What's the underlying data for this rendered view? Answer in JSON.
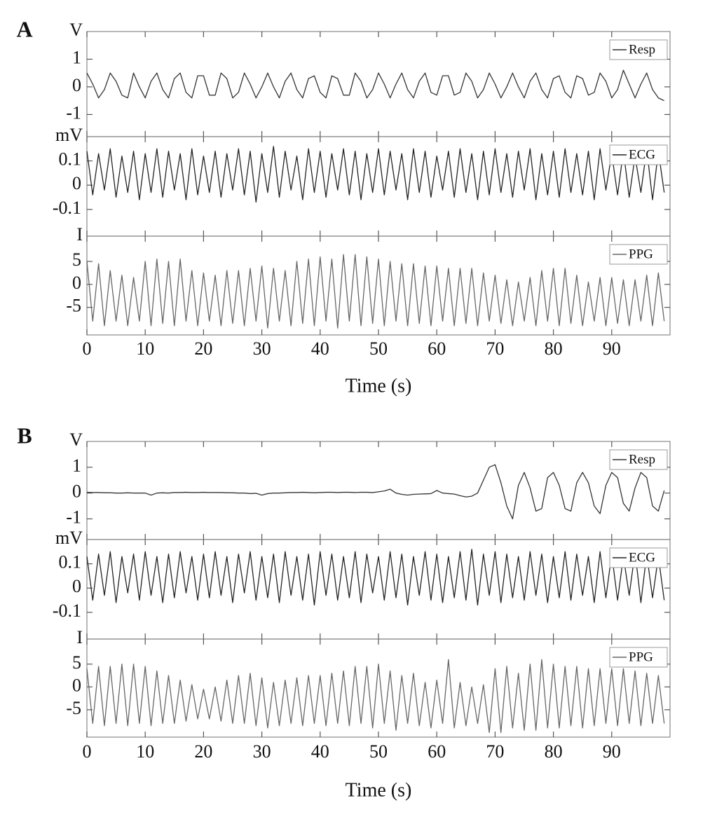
{
  "chart_data": [
    {
      "type": "line",
      "panel_label": "A",
      "xlabel": "Time (s)",
      "xlim": [
        0,
        100
      ],
      "xticks": [
        0,
        10,
        20,
        30,
        40,
        50,
        60,
        70,
        80,
        90
      ],
      "x": [
        0,
        1,
        2,
        3,
        4,
        5,
        6,
        7,
        8,
        9,
        10,
        11,
        12,
        13,
        14,
        15,
        16,
        17,
        18,
        19,
        20,
        21,
        22,
        23,
        24,
        25,
        26,
        27,
        28,
        29,
        30,
        31,
        32,
        33,
        34,
        35,
        36,
        37,
        38,
        39,
        40,
        41,
        42,
        43,
        44,
        45,
        46,
        47,
        48,
        49,
        50,
        51,
        52,
        53,
        54,
        55,
        56,
        57,
        58,
        59,
        60,
        61,
        62,
        63,
        64,
        65,
        66,
        67,
        68,
        69,
        70,
        71,
        72,
        73,
        74,
        75,
        76,
        77,
        78,
        79,
        80,
        81,
        82,
        83,
        84,
        85,
        86,
        87,
        88,
        89,
        90,
        91,
        92,
        93,
        94,
        95,
        96,
        97,
        98,
        99
      ],
      "rows": [
        {
          "unit": "V",
          "ylim": [
            -1.8,
            2.0
          ],
          "yticks": [
            -1,
            0,
            1
          ],
          "series": [
            {
              "name": "Resp",
              "color": "#333333",
              "values": [
                0.5,
                0.1,
                -0.4,
                -0.1,
                0.5,
                0.2,
                -0.3,
                -0.4,
                0.5,
                0.0,
                -0.4,
                0.2,
                0.5,
                -0.1,
                -0.4,
                0.3,
                0.5,
                -0.2,
                -0.4,
                0.4,
                0.4,
                -0.3,
                -0.3,
                0.5,
                0.3,
                -0.4,
                -0.2,
                0.5,
                0.1,
                -0.4,
                0.0,
                0.5,
                0.0,
                -0.4,
                0.2,
                0.5,
                -0.1,
                -0.4,
                0.3,
                0.4,
                -0.2,
                -0.4,
                0.4,
                0.3,
                -0.3,
                -0.3,
                0.5,
                0.2,
                -0.4,
                -0.1,
                0.5,
                0.1,
                -0.4,
                0.1,
                0.5,
                -0.1,
                -0.4,
                0.2,
                0.5,
                -0.2,
                -0.3,
                0.4,
                0.4,
                -0.3,
                -0.2,
                0.5,
                0.2,
                -0.4,
                -0.1,
                0.5,
                0.1,
                -0.4,
                0.0,
                0.5,
                0.0,
                -0.4,
                0.2,
                0.5,
                -0.1,
                -0.4,
                0.3,
                0.4,
                -0.2,
                -0.4,
                0.4,
                0.3,
                -0.3,
                -0.2,
                0.5,
                0.2,
                -0.4,
                -0.1,
                0.6,
                0.1,
                -0.4,
                0.1,
                0.5,
                -0.1,
                -0.4,
                -0.5
              ]
            }
          ]
        },
        {
          "unit": "mV",
          "ylim": [
            -0.21,
            0.2
          ],
          "yticks": [
            -0.1,
            0,
            0.1
          ],
          "series": [
            {
              "name": "ECG",
              "color": "#222222",
              "values": [
                0.14,
                -0.04,
                0.13,
                -0.02,
                0.15,
                -0.05,
                0.12,
                -0.03,
                0.14,
                -0.06,
                0.13,
                -0.03,
                0.15,
                -0.05,
                0.14,
                -0.02,
                0.13,
                -0.06,
                0.15,
                -0.04,
                0.12,
                -0.03,
                0.14,
                -0.05,
                0.13,
                -0.02,
                0.15,
                -0.04,
                0.14,
                -0.07,
                0.13,
                -0.03,
                0.16,
                -0.05,
                0.14,
                -0.02,
                0.12,
                -0.06,
                0.15,
                -0.03,
                0.14,
                -0.05,
                0.13,
                -0.02,
                0.15,
                -0.04,
                0.14,
                -0.06,
                0.13,
                -0.03,
                0.15,
                -0.04,
                0.14,
                -0.02,
                0.13,
                -0.06,
                0.15,
                -0.03,
                0.14,
                -0.05,
                0.12,
                -0.02,
                0.14,
                -0.05,
                0.15,
                -0.03,
                0.13,
                -0.06,
                0.14,
                -0.04,
                0.15,
                -0.03,
                0.13,
                -0.05,
                0.14,
                -0.02,
                0.15,
                -0.06,
                0.13,
                -0.04,
                0.14,
                -0.05,
                0.15,
                -0.03,
                0.13,
                -0.04,
                0.14,
                -0.06,
                0.15,
                -0.02,
                0.13,
                -0.04,
                0.14,
                -0.05,
                0.12,
                -0.03,
                0.15,
                -0.06,
                0.14,
                -0.03
              ]
            }
          ]
        },
        {
          "unit": "I",
          "ylim": [
            -11,
            10.5
          ],
          "yticks": [
            -5,
            0,
            5
          ],
          "series": [
            {
              "name": "PPG",
              "color": "#666666",
              "values": [
                5,
                -8,
                4.5,
                -9,
                3,
                -8,
                2,
                -9,
                1.5,
                -8,
                5,
                -9,
                5.5,
                -8.5,
                5,
                -9,
                5.5,
                -8,
                3,
                -9,
                2.5,
                -8,
                2,
                -9,
                3,
                -8.5,
                3,
                -9,
                3.5,
                -8,
                4,
                -9.5,
                3.5,
                -8,
                3,
                -9,
                5,
                -8.5,
                5.5,
                -9,
                6,
                -8,
                5.5,
                -9.5,
                6.5,
                -8,
                6.5,
                -9,
                6,
                -8.5,
                5.5,
                -9,
                5,
                -8,
                4.5,
                -9,
                4.5,
                -8.5,
                4,
                -9,
                4,
                -8,
                3.5,
                -9,
                3.5,
                -8.5,
                3.5,
                -9,
                2.5,
                -8,
                2,
                -8.5,
                1,
                -9,
                0.5,
                -8,
                1.5,
                -9,
                3,
                -8,
                3.5,
                -9,
                3.5,
                -8.5,
                2,
                -9,
                0.5,
                -8,
                1.5,
                -9,
                1.5,
                -8.5,
                1,
                -9,
                1,
                -8,
                2,
                -9,
                2.5,
                -8
              ]
            }
          ]
        }
      ]
    },
    {
      "type": "line",
      "panel_label": "B",
      "xlabel": "Time (s)",
      "xlim": [
        0,
        100
      ],
      "xticks": [
        0,
        10,
        20,
        30,
        40,
        50,
        60,
        70,
        80,
        90
      ],
      "x": [
        0,
        1,
        2,
        3,
        4,
        5,
        6,
        7,
        8,
        9,
        10,
        11,
        12,
        13,
        14,
        15,
        16,
        17,
        18,
        19,
        20,
        21,
        22,
        23,
        24,
        25,
        26,
        27,
        28,
        29,
        30,
        31,
        32,
        33,
        34,
        35,
        36,
        37,
        38,
        39,
        40,
        41,
        42,
        43,
        44,
        45,
        46,
        47,
        48,
        49,
        50,
        51,
        52,
        53,
        54,
        55,
        56,
        57,
        58,
        59,
        60,
        61,
        62,
        63,
        64,
        65,
        66,
        67,
        68,
        69,
        70,
        71,
        72,
        73,
        74,
        75,
        76,
        77,
        78,
        79,
        80,
        81,
        82,
        83,
        84,
        85,
        86,
        87,
        88,
        89,
        90,
        91,
        92,
        93,
        94,
        95,
        96,
        97,
        98,
        99
      ],
      "rows": [
        {
          "unit": "V",
          "ylim": [
            -1.8,
            2.0
          ],
          "yticks": [
            -1,
            0,
            1
          ],
          "series": [
            {
              "name": "Resp",
              "color": "#333333",
              "values": [
                0.03,
                0.02,
                0.02,
                0.01,
                0.01,
                0.0,
                0.0,
                0.01,
                0.0,
                0.0,
                0.0,
                -0.08,
                0.0,
                0.01,
                0.0,
                0.02,
                0.02,
                0.03,
                0.02,
                0.02,
                0.03,
                0.02,
                0.02,
                0.02,
                0.01,
                0.01,
                0.0,
                0.0,
                -0.02,
                -0.01,
                -0.08,
                -0.02,
                0.0,
                0.0,
                0.01,
                0.02,
                0.02,
                0.03,
                0.02,
                0.01,
                0.02,
                0.03,
                0.03,
                0.02,
                0.03,
                0.03,
                0.02,
                0.03,
                0.03,
                0.02,
                0.05,
                0.08,
                0.15,
                0.0,
                -0.05,
                -0.08,
                -0.05,
                -0.04,
                -0.03,
                -0.02,
                0.1,
                0.0,
                -0.02,
                -0.04,
                -0.1,
                -0.15,
                -0.12,
                0.0,
                0.5,
                1.0,
                1.1,
                0.4,
                -0.5,
                -1.0,
                0.3,
                0.8,
                0.2,
                -0.7,
                -0.6,
                0.6,
                0.8,
                0.3,
                -0.6,
                -0.7,
                0.4,
                0.8,
                0.4,
                -0.5,
                -0.8,
                0.3,
                0.8,
                0.6,
                -0.4,
                -0.7,
                0.2,
                0.8,
                0.6,
                -0.5,
                -0.7,
                0.1
              ]
            }
          ]
        },
        {
          "unit": "mV",
          "ylim": [
            -0.21,
            0.2
          ],
          "yticks": [
            -0.1,
            0,
            0.1
          ],
          "series": [
            {
              "name": "ECG",
              "color": "#222222",
              "values": [
                0.13,
                -0.05,
                0.14,
                -0.03,
                0.15,
                -0.06,
                0.13,
                -0.02,
                0.14,
                -0.05,
                0.15,
                -0.03,
                0.13,
                -0.06,
                0.14,
                -0.04,
                0.15,
                -0.02,
                0.13,
                -0.05,
                0.14,
                -0.04,
                0.15,
                -0.03,
                0.13,
                -0.06,
                0.14,
                -0.02,
                0.15,
                -0.05,
                0.13,
                -0.04,
                0.14,
                -0.06,
                0.15,
                -0.03,
                0.13,
                -0.05,
                0.14,
                -0.07,
                0.15,
                -0.03,
                0.14,
                -0.05,
                0.13,
                -0.04,
                0.15,
                -0.06,
                0.14,
                -0.02,
                0.13,
                -0.05,
                0.15,
                -0.04,
                0.14,
                -0.07,
                0.13,
                -0.03,
                0.15,
                -0.05,
                0.14,
                -0.06,
                0.13,
                -0.04,
                0.15,
                -0.05,
                0.16,
                -0.07,
                0.14,
                -0.03,
                0.15,
                -0.06,
                0.14,
                -0.04,
                0.13,
                -0.05,
                0.15,
                -0.03,
                0.14,
                -0.06,
                0.13,
                -0.04,
                0.15,
                -0.05,
                0.14,
                -0.03,
                0.13,
                -0.06,
                0.15,
                -0.04,
                0.14,
                -0.05,
                0.13,
                -0.03,
                0.15,
                -0.06,
                0.14,
                -0.04,
                0.13,
                -0.05
              ]
            }
          ]
        },
        {
          "unit": "I",
          "ylim": [
            -11,
            10.5
          ],
          "yticks": [
            -5,
            0,
            5
          ],
          "series": [
            {
              "name": "PPG",
              "color": "#666666",
              "values": [
                4,
                -8,
                4.5,
                -8.5,
                4.5,
                -8,
                5,
                -8.5,
                5,
                -8,
                4.5,
                -8.5,
                3.5,
                -8,
                2.5,
                -8,
                1.5,
                -7.5,
                0.5,
                -7,
                -0.5,
                -7,
                0,
                -7.5,
                1.5,
                -8,
                2.5,
                -8,
                3,
                -8.5,
                2,
                -9,
                1,
                -8.5,
                1.5,
                -8,
                2,
                -8.5,
                2.5,
                -8,
                2.5,
                -8.5,
                3,
                -8,
                3.5,
                -8.5,
                4.5,
                -8,
                4.5,
                -9,
                5,
                -8,
                3.5,
                -9.5,
                2.5,
                -8,
                3,
                -8.5,
                1,
                -9,
                1.5,
                -8,
                6,
                -9,
                1,
                -8.5,
                0,
                -8,
                0.5,
                -10,
                4,
                -10,
                4.5,
                -9,
                3,
                -9.5,
                5,
                -9.5,
                6,
                -9,
                5,
                -9,
                4.5,
                -8.5,
                4.5,
                -9,
                4,
                -8.5,
                4,
                -8,
                4,
                -8.5,
                4,
                -8,
                3.5,
                -8.5,
                3,
                -8,
                2.5,
                -8
              ]
            }
          ]
        }
      ]
    }
  ]
}
